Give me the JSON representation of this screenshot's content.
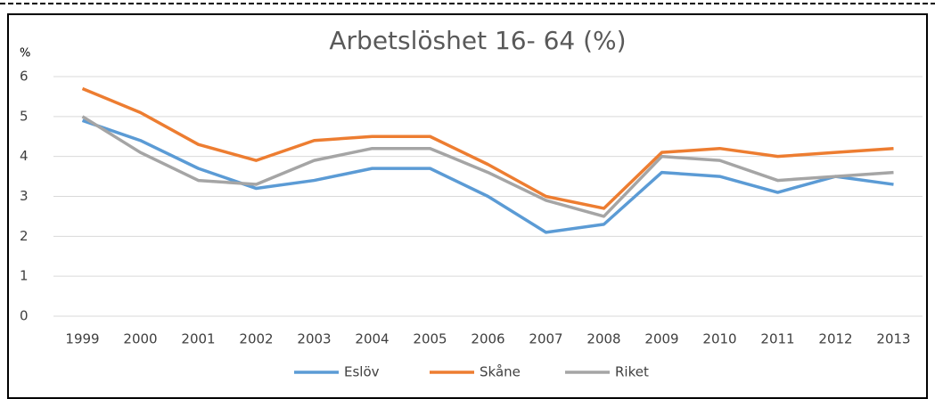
{
  "chart_data": {
    "type": "line",
    "title": "Arbetslöshet 16- 64 (%)",
    "y_label": "%",
    "categories": [
      "1999",
      "2000",
      "2001",
      "2002",
      "2003",
      "2004",
      "2005",
      "2006",
      "2007",
      "2008",
      "2009",
      "2010",
      "2011",
      "2012",
      "2013"
    ],
    "series": [
      {
        "name": "Eslöv",
        "color": "#5b9bd5",
        "values": [
          4.9,
          4.4,
          3.7,
          3.2,
          3.4,
          3.7,
          3.7,
          3.0,
          2.1,
          2.3,
          3.6,
          3.5,
          3.1,
          3.5,
          3.3
        ]
      },
      {
        "name": "Skåne",
        "color": "#ed7d31",
        "values": [
          5.7,
          5.1,
          4.3,
          3.9,
          4.4,
          4.5,
          4.5,
          3.8,
          3.0,
          2.7,
          4.1,
          4.2,
          4.0,
          4.1,
          4.2
        ]
      },
      {
        "name": "Riket",
        "color": "#a5a5a5",
        "values": [
          5.0,
          4.1,
          3.4,
          3.3,
          3.9,
          4.2,
          4.2,
          3.6,
          2.9,
          2.5,
          4.0,
          3.9,
          3.4,
          3.5,
          3.6
        ]
      }
    ],
    "ylim": [
      0,
      6
    ],
    "yticks": [
      0,
      1,
      2,
      3,
      4,
      5,
      6
    ],
    "grid": true,
    "legend": "bottom"
  }
}
